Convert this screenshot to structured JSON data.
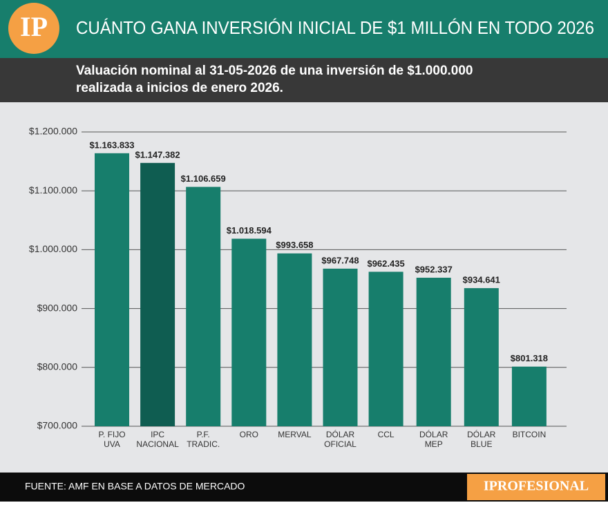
{
  "logo": "IP",
  "brand": "IPROFESIONAL",
  "chart_data": {
    "type": "bar",
    "title": "CUÁNTO GANA INVERSIÓN INICIAL DE $1 MILLÓN EN TODO 2026",
    "subtitle": [
      "Valuación nominal al 31-05-2026 de una inversión de $1.000.000",
      "realizada a inicios de enero 2026."
    ],
    "source": "FUENTE: AMF EN BASE A DATOS DE MERCADO",
    "categories": [
      [
        "P. FIJO",
        "UVA"
      ],
      [
        "IPC",
        "NACIONAL"
      ],
      [
        "P.F.",
        "TRADIC."
      ],
      [
        "ORO"
      ],
      [
        "MERVAL"
      ],
      [
        "DÓLAR",
        "OFICIAL"
      ],
      [
        "CCL"
      ],
      [
        "DÓLAR",
        "MEP"
      ],
      [
        "DÓLAR",
        "BLUE"
      ],
      [
        "BITCOIN"
      ]
    ],
    "values": [
      1163833,
      1147382,
      1106659,
      1018594,
      993658,
      967748,
      962435,
      952337,
      934641,
      801318
    ],
    "value_labels": [
      "$1.163.833",
      "$1.147.382",
      "$1.106.659",
      "$1.018.594",
      "$993.658",
      "$967.748",
      "$962.435",
      "$952.337",
      "$934.641",
      "$801.318"
    ],
    "colors": [
      "#177e6c",
      "#0f5d51",
      "#177e6c",
      "#177e6c",
      "#177e6c",
      "#177e6c",
      "#177e6c",
      "#177e6c",
      "#177e6c",
      "#177e6c"
    ],
    "ylim": [
      700000,
      1200000
    ],
    "yticks": [
      {
        "value": 700000,
        "label": "$700.000"
      },
      {
        "value": 800000,
        "label": "$800.000"
      },
      {
        "value": 900000,
        "label": "$900.000"
      },
      {
        "value": 1000000,
        "label": "$1.000.000"
      },
      {
        "value": 1100000,
        "label": "$1.100.000"
      },
      {
        "value": 1200000,
        "label": "$1.200.000"
      }
    ],
    "grid": true
  }
}
